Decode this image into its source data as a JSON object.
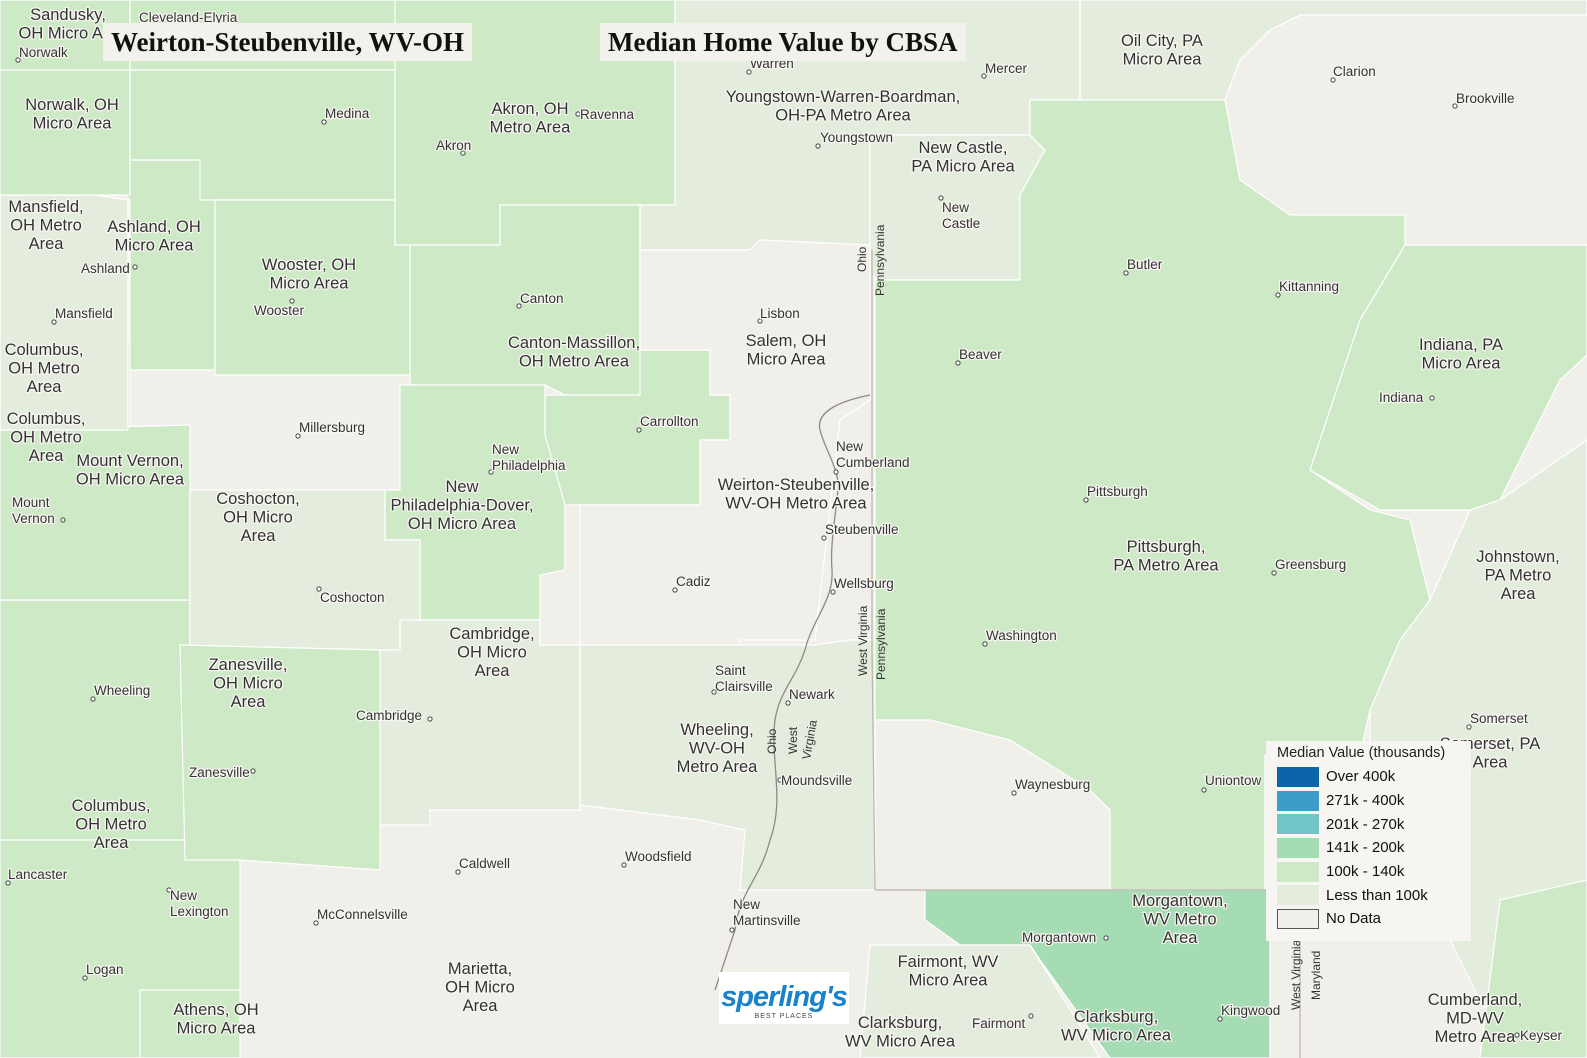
{
  "title": "Weirton-Steubenville, WV-OH",
  "subtitle": "Median Home Value by CBSA",
  "legend": {
    "title": "Median Value (thousands)",
    "items": [
      {
        "label": "Over 400k",
        "color": "#0e64a8"
      },
      {
        "label": "271k - 400k",
        "color": "#3c9dc9"
      },
      {
        "label": "201k - 270k",
        "color": "#70c5c6"
      },
      {
        "label": "141k - 200k",
        "color": "#a6dcb4"
      },
      {
        "label": "100k - 140k",
        "color": "#cde9c6"
      },
      {
        "label": "Less than 100k",
        "color": "#e4eddd"
      },
      {
        "label": "No Data",
        "color": "#f1efea"
      }
    ]
  },
  "logo": {
    "name": "sperling's",
    "tagline": "BEST PLACES"
  },
  "cbsa_areas": [
    {
      "name": "Sandusky, OH Micro Area",
      "lines": [
        "Sandusky,",
        "OH Micro Are"
      ]
    },
    {
      "name": "Norwalk, OH Micro Area",
      "lines": [
        "Norwalk, OH",
        "Micro Area"
      ]
    },
    {
      "name": "Mansfield, OH Metro Area",
      "lines": [
        "Mansfield,",
        "OH Metro",
        "Area"
      ]
    },
    {
      "name": "Ashland, OH Micro Area",
      "lines": [
        "Ashland, OH",
        "Micro Area"
      ]
    },
    {
      "name": "Wooster, OH Micro Area",
      "lines": [
        "Wooster, OH",
        "Micro Area"
      ]
    },
    {
      "name": "Columbus, OH Metro Area (1)",
      "lines": [
        "Columbus,",
        "OH Metro",
        "Area"
      ]
    },
    {
      "name": "Columbus, OH Metro Area (2)",
      "lines": [
        "Columbus,",
        "OH Metro",
        "Area"
      ]
    },
    {
      "name": "Mount Vernon, OH Micro Area",
      "lines": [
        "Mount Vernon,",
        "OH Micro Area"
      ]
    },
    {
      "name": "Coshocton, OH Micro Area",
      "lines": [
        "Coshocton,",
        "OH Micro",
        "Area"
      ]
    },
    {
      "name": "Akron, OH Metro Area",
      "lines": [
        "Akron, OH",
        "Metro Area"
      ]
    },
    {
      "name": "Canton-Massillon, OH Metro Area",
      "lines": [
        "Canton-Massillon,",
        "OH Metro Area"
      ]
    },
    {
      "name": "New Philadelphia-Dover, OH Micro Area",
      "lines": [
        "New",
        "Philadelphia-Dover,",
        "OH Micro Area"
      ]
    },
    {
      "name": "Cambridge, OH Micro Area",
      "lines": [
        "Cambridge,",
        "OH Micro",
        "Area"
      ]
    },
    {
      "name": "Zanesville, OH Micro Area",
      "lines": [
        "Zanesville,",
        "OH Micro",
        "Area"
      ]
    },
    {
      "name": "Columbus, OH Metro Area (3)",
      "lines": [
        "Columbus,",
        "OH Metro",
        "Area"
      ]
    },
    {
      "name": "Athens, OH Micro Area",
      "lines": [
        "Athens, OH",
        "Micro Area"
      ]
    },
    {
      "name": "Marietta, OH Micro Area",
      "lines": [
        "Marietta,",
        "OH Micro",
        "Area"
      ]
    },
    {
      "name": "Youngstown-Warren-Boardman, OH-PA Metro Area",
      "lines": [
        "Youngstown-Warren-Boardman,",
        "OH-PA Metro Area"
      ]
    },
    {
      "name": "Salem, OH Micro Area",
      "lines": [
        "Salem, OH",
        "Micro Area"
      ]
    },
    {
      "name": "Weirton-Steubenville, WV-OH Metro Area",
      "lines": [
        "Weirton-Steubenville,",
        "WV-OH Metro Area"
      ]
    },
    {
      "name": "Wheeling, WV-OH Metro Area",
      "lines": [
        "Wheeling,",
        "WV-OH",
        "Metro Area"
      ]
    },
    {
      "name": "New Castle, PA Micro Area",
      "lines": [
        "New Castle,",
        "PA Micro Area"
      ]
    },
    {
      "name": "Oil City, PA Micro Area",
      "lines": [
        "Oil City, PA",
        "Micro Area"
      ]
    },
    {
      "name": "Pittsburgh, PA Metro Area",
      "lines": [
        "Pittsburgh,",
        "PA Metro Area"
      ]
    },
    {
      "name": "Indiana, PA Micro Area",
      "lines": [
        "Indiana, PA",
        "Micro Area"
      ]
    },
    {
      "name": "Johnstown, PA Metro Area",
      "lines": [
        "Johnstown,",
        "PA Metro",
        "Area"
      ]
    },
    {
      "name": "Somerset, PA Micro Area",
      "lines": [
        "Somerset, PA",
        "Area"
      ]
    },
    {
      "name": "Morgantown, WV Metro Area",
      "lines": [
        "Morgantown,",
        "WV Metro",
        "Area"
      ]
    },
    {
      "name": "Fairmont, WV Micro Area",
      "lines": [
        "Fairmont, WV",
        "Micro Area"
      ]
    },
    {
      "name": "Clarksburg, WV Micro Area (1)",
      "lines": [
        "Clarksburg,",
        "WV Micro Area"
      ]
    },
    {
      "name": "Clarksburg, WV Micro Area (2)",
      "lines": [
        "Clarksburg,",
        "WV Micro Area"
      ]
    },
    {
      "name": "Cumberland, MD-WV Metro Area",
      "lines": [
        "Cumberland,",
        "MD-WV",
        "Metro Area"
      ]
    }
  ],
  "cities": [
    {
      "name": "Cleveland-Elyria",
      "lines": [
        "Cleveland-Elyria"
      ]
    },
    {
      "name": "Norwalk",
      "lines": [
        "Norwalk"
      ]
    },
    {
      "name": "Medina",
      "lines": [
        "Medina"
      ]
    },
    {
      "name": "Akron",
      "lines": [
        "Akron"
      ]
    },
    {
      "name": "Ravenna",
      "lines": [
        "Ravenna"
      ]
    },
    {
      "name": "Warren",
      "lines": [
        "Warren"
      ]
    },
    {
      "name": "Youngstown",
      "lines": [
        "Youngstown"
      ]
    },
    {
      "name": "Mercer",
      "lines": [
        "Mercer"
      ]
    },
    {
      "name": "Clarion",
      "lines": [
        "Clarion"
      ]
    },
    {
      "name": "Brookville",
      "lines": [
        "Brookville"
      ]
    },
    {
      "name": "New Castle",
      "lines": [
        "New",
        "Castle"
      ]
    },
    {
      "name": "Ashland",
      "lines": [
        "Ashland"
      ]
    },
    {
      "name": "Mansfield",
      "lines": [
        "Mansfield"
      ]
    },
    {
      "name": "Wooster",
      "lines": [
        "Wooster"
      ]
    },
    {
      "name": "Canton",
      "lines": [
        "Canton"
      ]
    },
    {
      "name": "Lisbon",
      "lines": [
        "Lisbon"
      ]
    },
    {
      "name": "Butler",
      "lines": [
        "Butler"
      ]
    },
    {
      "name": "Kittanning",
      "lines": [
        "Kittanning"
      ]
    },
    {
      "name": "Beaver",
      "lines": [
        "Beaver"
      ]
    },
    {
      "name": "Indiana",
      "lines": [
        "Indiana"
      ]
    },
    {
      "name": "Millersburg",
      "lines": [
        "Millersburg"
      ]
    },
    {
      "name": "Carrollton",
      "lines": [
        "Carrollton"
      ]
    },
    {
      "name": "New Philadelphia",
      "lines": [
        "New",
        "Philadelphia"
      ]
    },
    {
      "name": "New Cumberland",
      "lines": [
        "New",
        "Cumberland"
      ]
    },
    {
      "name": "Pittsburgh",
      "lines": [
        "Pittsburgh"
      ]
    },
    {
      "name": "Mount Vernon",
      "lines": [
        "Mount",
        "Vernon"
      ]
    },
    {
      "name": "Steubenville",
      "lines": [
        "Steubenville"
      ]
    },
    {
      "name": "Greensburg",
      "lines": [
        "Greensburg"
      ]
    },
    {
      "name": "Cadiz",
      "lines": [
        "Cadiz"
      ]
    },
    {
      "name": "Wellsburg",
      "lines": [
        "Wellsburg"
      ]
    },
    {
      "name": "Coshocton",
      "lines": [
        "Coshocton"
      ]
    },
    {
      "name": "Washington",
      "lines": [
        "Washington"
      ]
    },
    {
      "name": "Saint Clairsville",
      "lines": [
        "Saint",
        "Clairsville"
      ]
    },
    {
      "name": "Newark",
      "lines": [
        "Newark"
      ]
    },
    {
      "name": "Wheeling",
      "lines": [
        "Wheeling"
      ]
    },
    {
      "name": "Cambridge",
      "lines": [
        "Cambridge"
      ]
    },
    {
      "name": "Somerset",
      "lines": [
        "Somerset"
      ]
    },
    {
      "name": "Zanesville",
      "lines": [
        "Zanesville"
      ]
    },
    {
      "name": "Moundsville",
      "lines": [
        "Moundsville"
      ]
    },
    {
      "name": "Waynesburg",
      "lines": [
        "Waynesburg"
      ]
    },
    {
      "name": "Uniontown",
      "lines": [
        "Uniontow"
      ]
    },
    {
      "name": "Caldwell",
      "lines": [
        "Caldwell"
      ]
    },
    {
      "name": "Woodsfield",
      "lines": [
        "Woodsfield"
      ]
    },
    {
      "name": "Lancaster",
      "lines": [
        "Lancaster"
      ]
    },
    {
      "name": "New Lexington",
      "lines": [
        "New",
        "Lexington"
      ]
    },
    {
      "name": "McConnelsville",
      "lines": [
        "McConnelsville"
      ]
    },
    {
      "name": "New Martinsville",
      "lines": [
        "New",
        "Martinsville"
      ]
    },
    {
      "name": "Morgantown",
      "lines": [
        "Morgantown"
      ]
    },
    {
      "name": "Logan",
      "lines": [
        "Logan"
      ]
    },
    {
      "name": "Fairmont",
      "lines": [
        "Fairmont"
      ]
    },
    {
      "name": "Kingwood",
      "lines": [
        "Kingwood"
      ]
    },
    {
      "name": "Keyser",
      "lines": [
        "Keyser"
      ]
    }
  ],
  "state_labels": [
    {
      "name": "Ohio",
      "text": "Ohio"
    },
    {
      "name": "Pennsylvania",
      "text": "Pennsylvania"
    },
    {
      "name": "West Virginia",
      "text": "West Virginia"
    },
    {
      "name": "Pennsylvania (south)",
      "text": "Pennsylvania"
    },
    {
      "name": "Ohio (river)",
      "text": "Ohio"
    },
    {
      "name": "West Virginia (river)",
      "text": "West"
    },
    {
      "name": "West Virginia (river 2)",
      "text": "Virginia"
    },
    {
      "name": "West Virginia (east)",
      "text": "West Virginia"
    },
    {
      "name": "Maryland",
      "text": "Maryland"
    }
  ]
}
